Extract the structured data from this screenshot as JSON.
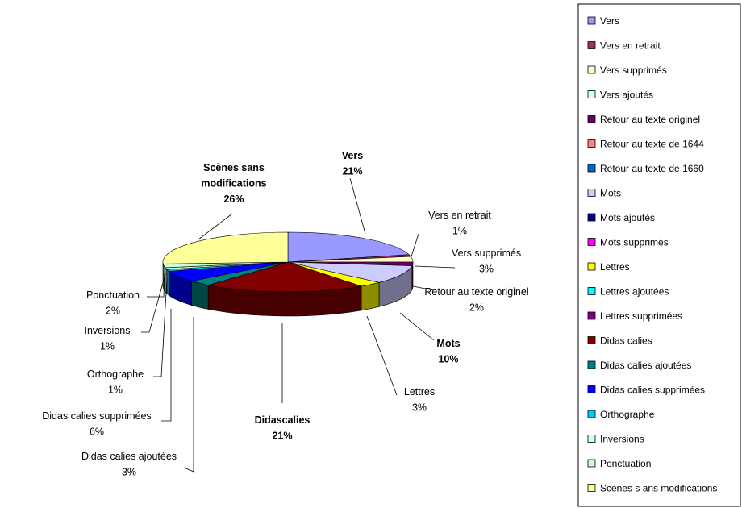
{
  "chart_data": {
    "type": "pie",
    "series": [
      {
        "name": "Vers",
        "value": 21,
        "label": "21%",
        "color": "#9999ff"
      },
      {
        "name": "Vers en retrait",
        "value": 1,
        "label": "1%",
        "color": "#993366"
      },
      {
        "name": "Vers supprimés",
        "value": 3,
        "label": "3%",
        "color": "#ffffcc"
      },
      {
        "name": "Vers ajoutés",
        "value": 0,
        "label": "",
        "color": "#ccffff"
      },
      {
        "name": "Retour au texte originel",
        "value": 2,
        "label": "2%",
        "color": "#660066"
      },
      {
        "name": "Retour au texte de 1644",
        "value": 0,
        "label": "",
        "color": "#ff8080"
      },
      {
        "name": "Retour au texte de 1660",
        "value": 0,
        "label": "",
        "color": "#0066cc"
      },
      {
        "name": "Mots",
        "value": 10,
        "label": "10%",
        "color": "#ccccff"
      },
      {
        "name": "Mots ajoutés",
        "value": 0,
        "label": "",
        "color": "#000080"
      },
      {
        "name": "Mots supprimés",
        "value": 0,
        "label": "",
        "color": "#ff00ff"
      },
      {
        "name": "Lettres",
        "value": 3,
        "label": "3%",
        "color": "#ffff00"
      },
      {
        "name": "Lettres ajoutées",
        "value": 0,
        "label": "",
        "color": "#00ffff"
      },
      {
        "name": "Lettres supprimées",
        "value": 0,
        "label": "",
        "color": "#800080"
      },
      {
        "name": "Didas calies",
        "value": 21,
        "label": "21%",
        "color": "#800000"
      },
      {
        "name": "Didas calies ajoutées",
        "value": 3,
        "label": "3%",
        "color": "#008080"
      },
      {
        "name": "Didas calies supprimées",
        "value": 6,
        "label": "6%",
        "color": "#0000ff"
      },
      {
        "name": "Orthographe",
        "value": 1,
        "label": "1%",
        "color": "#00ccff"
      },
      {
        "name": "Inversions",
        "value": 1,
        "label": "1%",
        "color": "#ccffff"
      },
      {
        "name": "Ponctuation",
        "value": 2,
        "label": "2%",
        "color": "#ccffcc"
      },
      {
        "name": "Scènes sans modifications",
        "value": 26,
        "label": "26%",
        "color": "#ffff99"
      }
    ],
    "data_labels": [
      {
        "lines": [
          "Vers",
          "21%"
        ],
        "bold": true
      },
      {
        "lines": [
          "Vers en retrait",
          "1%"
        ],
        "bold": false
      },
      {
        "lines": [
          "Vers supprimés",
          "3%"
        ],
        "bold": false
      },
      {
        "lines": [
          "Retour au texte originel",
          "2%"
        ],
        "bold": false
      },
      {
        "lines": [
          "Mots",
          "10%"
        ],
        "bold": true
      },
      {
        "lines": [
          "Lettres",
          "3%"
        ],
        "bold": false
      },
      {
        "lines": [
          "Didascalies",
          "21%"
        ],
        "bold": true
      },
      {
        "lines": [
          "Didas calies ajoutées",
          "3%"
        ],
        "bold": false
      },
      {
        "lines": [
          "Didas calies supprimées",
          "6%"
        ],
        "bold": false
      },
      {
        "lines": [
          "Orthographe",
          "1%"
        ],
        "bold": false
      },
      {
        "lines": [
          "Inversions",
          "1%"
        ],
        "bold": false
      },
      {
        "lines": [
          "Ponctuation",
          "2%"
        ],
        "bold": false
      },
      {
        "lines": [
          "Scènes sans",
          "modifications",
          "26%"
        ],
        "bold": true
      }
    ],
    "legend": [
      "Vers",
      "Vers en retrait",
      "Vers supprimés",
      "Vers ajoutés",
      "Retour au texte originel",
      "Retour au texte de 1644",
      "Retour au texte de 1660",
      "Mots",
      "Mots ajoutés",
      "Mots supprimés",
      "Lettres",
      "Lettres ajoutées",
      "Lettres supprimées",
      "Didas calies",
      "Didas calies ajoutées",
      "Didas calies supprimées",
      "Orthographe",
      "Inversions",
      "Ponctuation",
      "Scènes s ans modifications"
    ],
    "legend_placement": "right",
    "style": "3d-pie"
  }
}
